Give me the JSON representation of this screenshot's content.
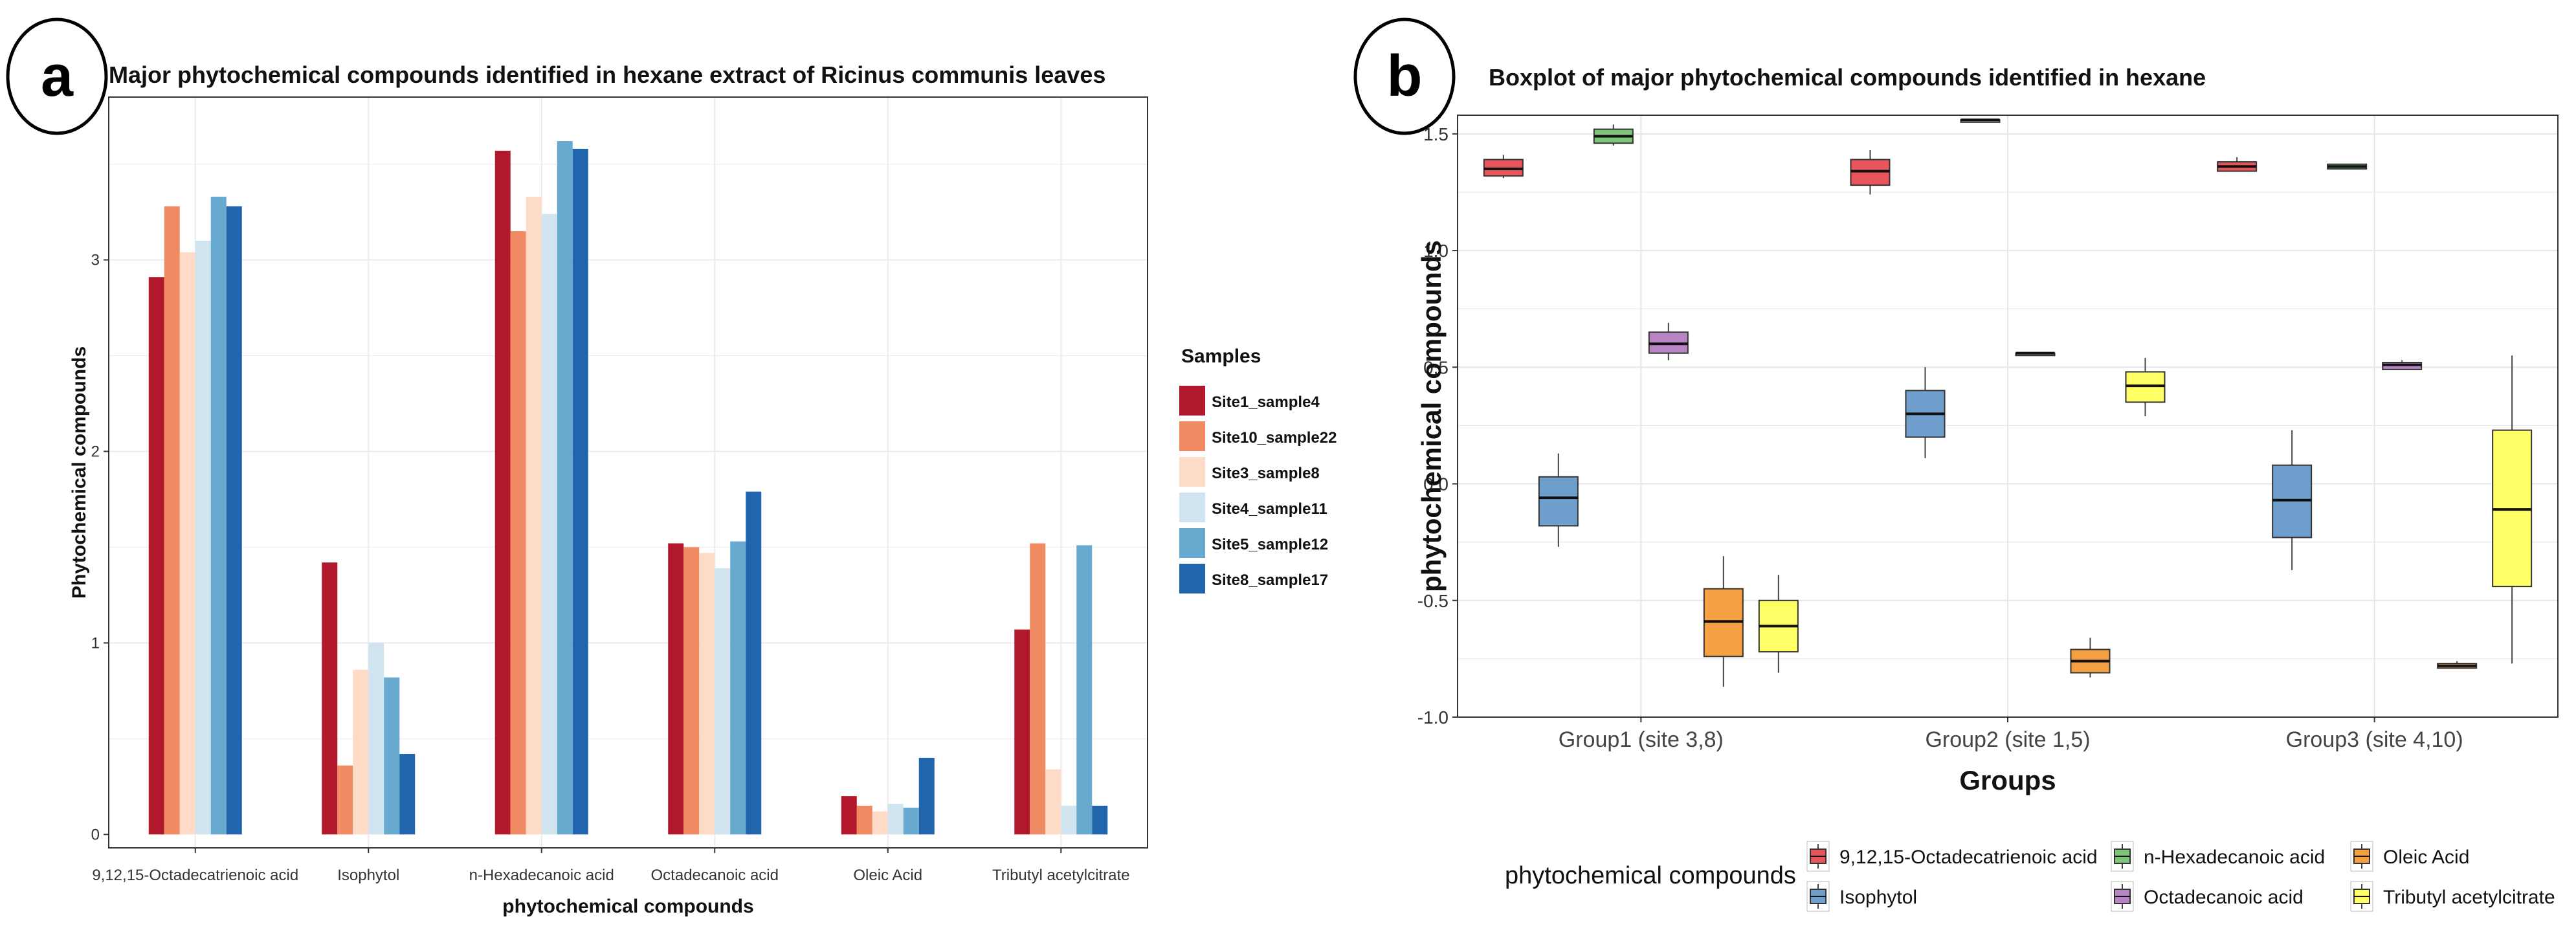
{
  "chart_data": [
    {
      "panel": "a",
      "type": "bar",
      "title": "Major phytochemical compounds identified in hexane extract of Ricinus communis leaves",
      "xlabel": "phytochemical compounds",
      "ylabel": "Phytochemical compounds",
      "ylim": [
        -0.07,
        3.85
      ],
      "yticks": [
        "0",
        "1",
        "2",
        "3"
      ],
      "grid": true,
      "categories": [
        "9,12,15-Octadecatrienoic acid",
        "Isophytol",
        "n-Hexadecanoic acid",
        "Octadecanoic acid",
        "Oleic Acid",
        "Tributyl acetylcitrate"
      ],
      "legend_title": "Samples",
      "legend_position": "right",
      "series": [
        {
          "name": "Site1_sample4",
          "color": "#b2182b",
          "values": [
            2.91,
            1.42,
            3.57,
            1.52,
            0.2,
            1.07
          ]
        },
        {
          "name": "Site10_sample22",
          "color": "#ef8a62",
          "values": [
            3.28,
            0.36,
            3.15,
            1.5,
            0.15,
            1.52
          ]
        },
        {
          "name": "Site3_sample8",
          "color": "#fddbc7",
          "values": [
            3.04,
            0.86,
            3.33,
            1.47,
            0.12,
            0.34
          ]
        },
        {
          "name": "Site4_sample11",
          "color": "#d1e5f0",
          "values": [
            3.1,
            1.0,
            3.24,
            1.39,
            0.16,
            0.15
          ]
        },
        {
          "name": "Site5_sample12",
          "color": "#67a9cf",
          "values": [
            3.33,
            0.82,
            3.62,
            1.53,
            0.14,
            1.51
          ]
        },
        {
          "name": "Site8_sample17",
          "color": "#2166ac",
          "values": [
            3.28,
            0.42,
            3.58,
            1.79,
            0.4,
            0.15
          ]
        }
      ]
    },
    {
      "panel": "b",
      "type": "boxplot",
      "title": "Boxplot of major phytochemical compounds identified in hexane",
      "xlabel": "Groups",
      "ylabel": "phytochemical compounds",
      "ylim": [
        -1.0,
        1.58
      ],
      "yticks": [
        "1.5",
        "1.0",
        "0.5",
        "0.0",
        "-0.5",
        "-1.0"
      ],
      "grid": true,
      "categories": [
        "Group1 (site 3,8)",
        "Group2 (site 1,5)",
        "Group3 (site 4,10)"
      ],
      "legend_title": "phytochemical compounds",
      "legend_position": "bottom",
      "series": [
        {
          "name": "9,12,15-Octadecatrienoic acid",
          "color": "#e8565c",
          "boxes": [
            {
              "min": 1.31,
              "q1": 1.32,
              "median": 1.35,
              "q3": 1.39,
              "max": 1.41
            },
            {
              "min": 1.24,
              "q1": 1.28,
              "median": 1.34,
              "q3": 1.39,
              "max": 1.43
            },
            {
              "min": 1.34,
              "q1": 1.34,
              "median": 1.36,
              "q3": 1.38,
              "max": 1.4
            }
          ]
        },
        {
          "name": "Isophytol",
          "color": "#6f9fcc",
          "boxes": [
            {
              "min": -0.27,
              "q1": -0.18,
              "median": -0.06,
              "q3": 0.03,
              "max": 0.13
            },
            {
              "min": 0.11,
              "q1": 0.2,
              "median": 0.3,
              "q3": 0.4,
              "max": 0.5
            },
            {
              "min": -0.37,
              "q1": -0.23,
              "median": -0.07,
              "q3": 0.08,
              "max": 0.23
            }
          ]
        },
        {
          "name": "n-Hexadecanoic acid",
          "color": "#7ec47b",
          "boxes": [
            {
              "min": 1.45,
              "q1": 1.46,
              "median": 1.49,
              "q3": 1.52,
              "max": 1.54
            },
            {
              "min": 1.55,
              "q1": 1.55,
              "median": 1.56,
              "q3": 1.56,
              "max": 1.56
            },
            {
              "min": 1.35,
              "q1": 1.35,
              "median": 1.36,
              "q3": 1.37,
              "max": 1.37
            }
          ]
        },
        {
          "name": "Octadecanoic acid",
          "color": "#b884c4",
          "boxes": [
            {
              "min": 0.53,
              "q1": 0.56,
              "median": 0.6,
              "q3": 0.65,
              "max": 0.69
            },
            {
              "min": 0.55,
              "q1": 0.55,
              "median": 0.56,
              "q3": 0.56,
              "max": 0.56
            },
            {
              "min": 0.49,
              "q1": 0.49,
              "median": 0.51,
              "q3": 0.52,
              "max": 0.53
            }
          ]
        },
        {
          "name": "Oleic Acid",
          "color": "#f4a043",
          "boxes": [
            {
              "min": -0.87,
              "q1": -0.74,
              "median": -0.59,
              "q3": -0.45,
              "max": -0.31
            },
            {
              "min": -0.83,
              "q1": -0.81,
              "median": -0.76,
              "q3": -0.71,
              "max": -0.66
            },
            {
              "min": -0.79,
              "q1": -0.79,
              "median": -0.78,
              "q3": -0.77,
              "max": -0.76
            }
          ]
        },
        {
          "name": "Tributyl acetylcitrate",
          "color": "#ffff66",
          "boxes": [
            {
              "min": -0.81,
              "q1": -0.72,
              "median": -0.61,
              "q3": -0.5,
              "max": -0.39
            },
            {
              "min": 0.29,
              "q1": 0.35,
              "median": 0.42,
              "q3": 0.48,
              "max": 0.54
            },
            {
              "min": -0.77,
              "q1": -0.44,
              "median": -0.11,
              "q3": 0.23,
              "max": 0.55
            }
          ]
        }
      ]
    }
  ]
}
